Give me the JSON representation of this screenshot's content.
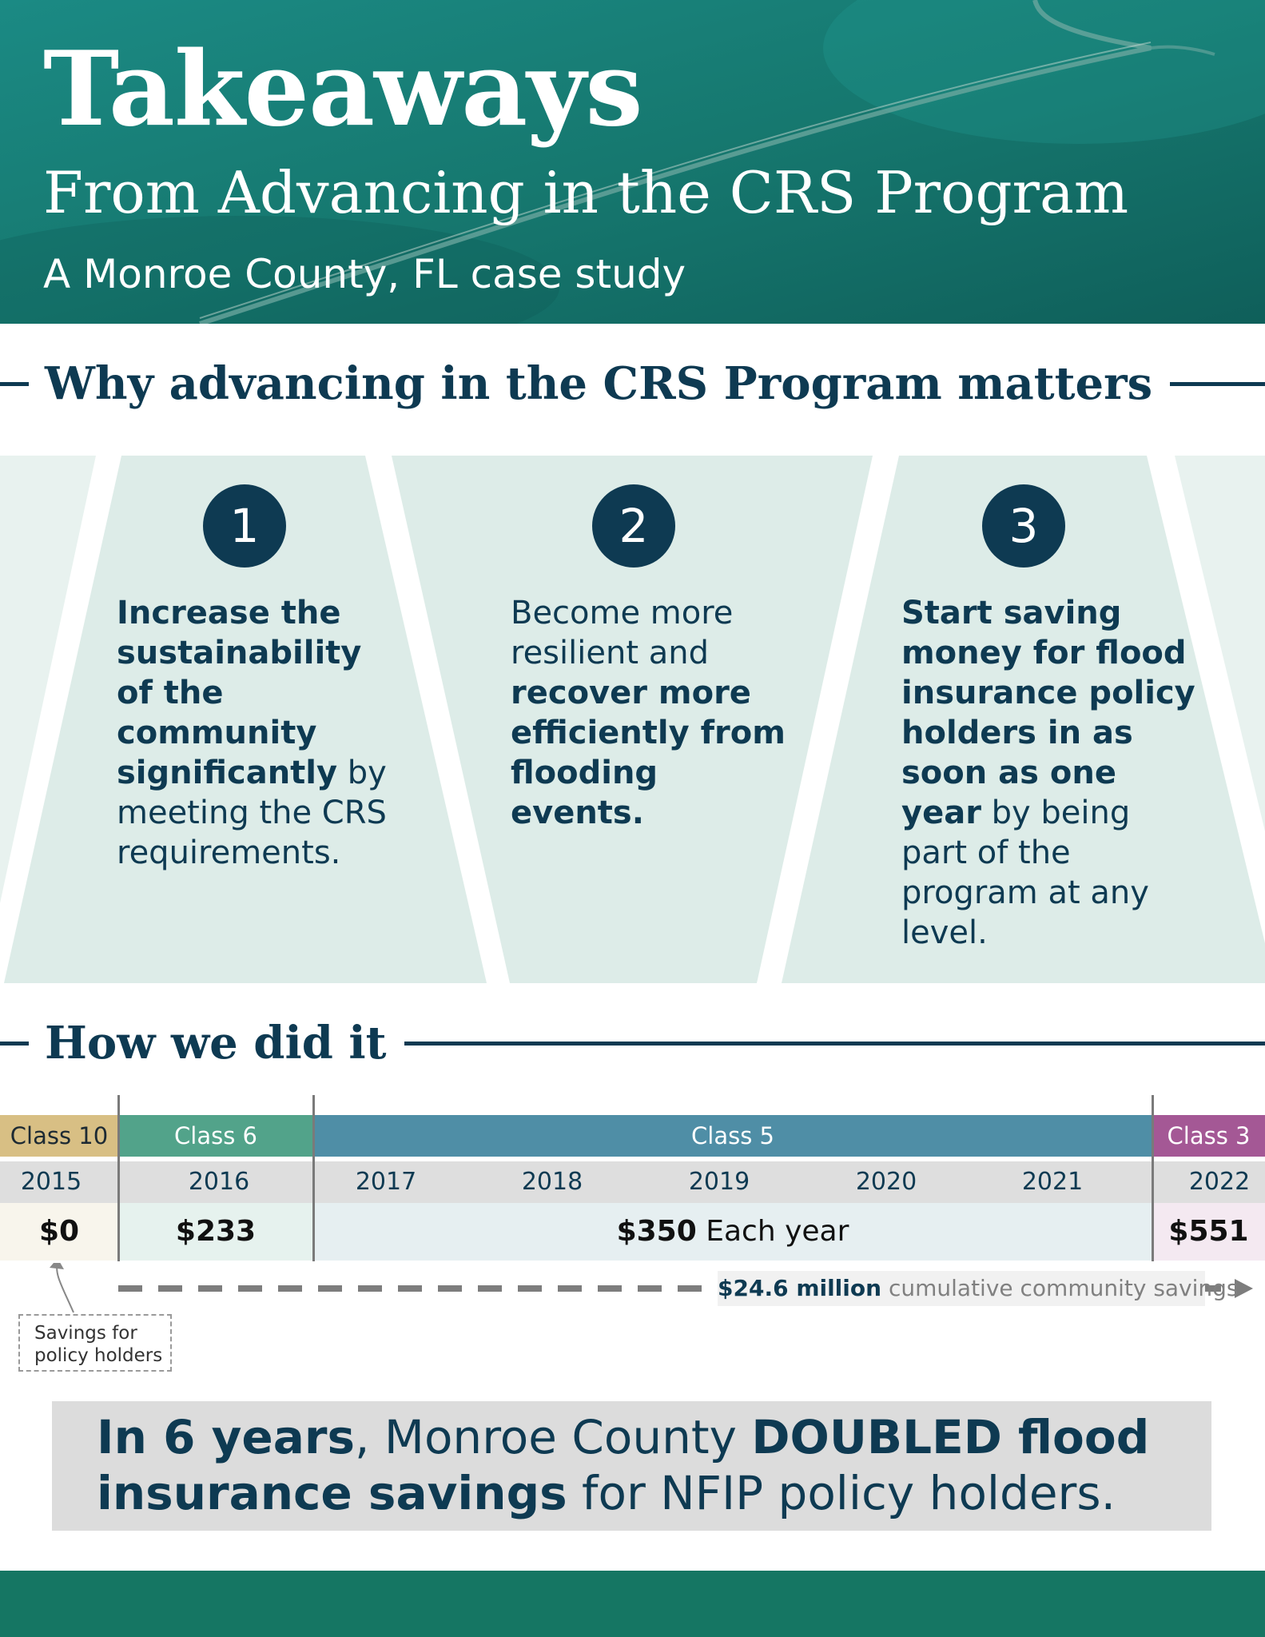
{
  "colors": {
    "navy": "#0e3a52",
    "teal_header": "#17766f",
    "panel_fill": "#ddece8",
    "class10": "#d8bf84",
    "class6": "#52a38a",
    "class5": "#4f8ea6",
    "class3": "#a45895",
    "footer": "#157663"
  },
  "header": {
    "title": "Takeaways",
    "subtitle": "From Advancing in the CRS Program",
    "caption": "A Monroe County, FL case study"
  },
  "section1": {
    "heading": "Why advancing in the CRS Program matters",
    "panels": [
      {
        "number": "1",
        "parts": [
          {
            "text": "Increase the sustainability of the community significantly",
            "bold": true
          },
          {
            "text": " by meeting the CRS requirements.",
            "bold": false
          }
        ]
      },
      {
        "number": "2",
        "parts": [
          {
            "text": "Become more resilient and ",
            "bold": false
          },
          {
            "text": "recover more efficiently from flooding events.",
            "bold": true
          }
        ]
      },
      {
        "number": "3",
        "parts": [
          {
            "text": "Start saving money for flood insurance policy holders in as soon as one year",
            "bold": true
          },
          {
            "text": " by being part of the program at any level.",
            "bold": false
          }
        ]
      }
    ]
  },
  "section2": {
    "heading": "How we did it",
    "classes": [
      {
        "label": "Class 10"
      },
      {
        "label": "Class 6"
      },
      {
        "label": "Class 5"
      },
      {
        "label": "Class 3"
      }
    ],
    "years": [
      "2015",
      "2016",
      "2017",
      "2018",
      "2019",
      "2020",
      "2021",
      "2022"
    ],
    "values": {
      "v2015": "$0",
      "v2016": "$233",
      "v2017_2021_amount": "$350",
      "v2017_2021_suffix": " Each year",
      "v2022": "$551"
    },
    "cumulative": {
      "amount": "$24.6 million",
      "text": " cumulative community savings"
    },
    "note_line1": "Savings for",
    "note_line2": "policy holders"
  },
  "callout": {
    "parts": [
      {
        "text": "In 6 years",
        "bold": true
      },
      {
        "text": ", Monroe County ",
        "bold": false
      },
      {
        "text": "DOUBLED flood insurance savings",
        "bold": true
      },
      {
        "text": " for NFIP policy holders.",
        "bold": false
      }
    ]
  }
}
